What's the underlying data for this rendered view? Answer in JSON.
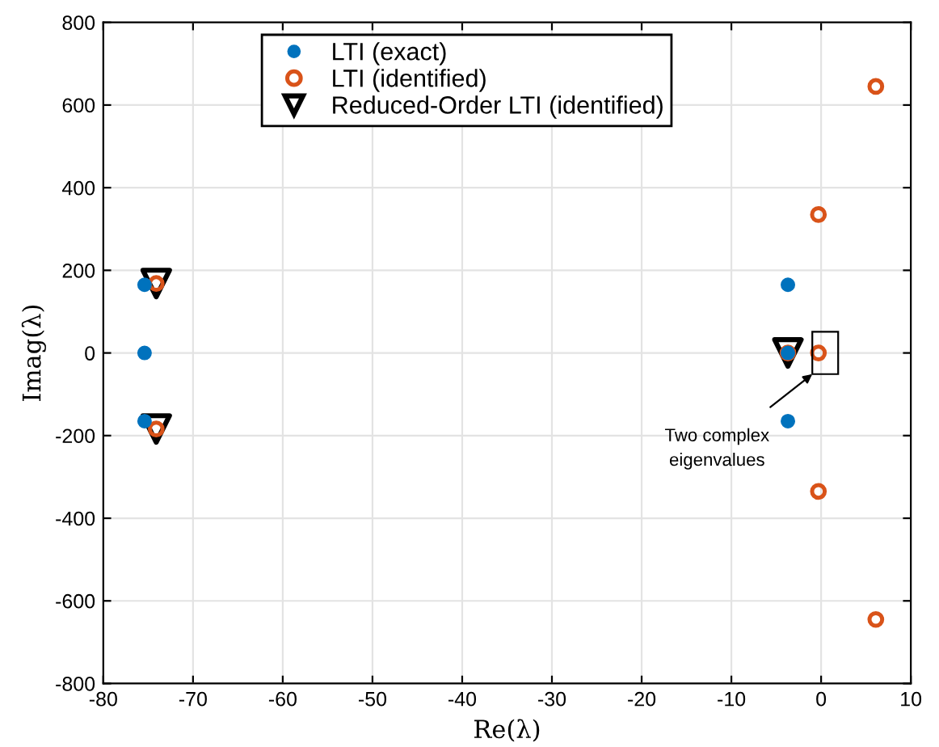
{
  "chart_data": {
    "type": "scatter",
    "xlabel": "Re(λ)",
    "ylabel": "Imag(λ)",
    "xlim": [
      -80,
      10
    ],
    "xticks": [
      -80,
      -70,
      -60,
      -50,
      -40,
      -30,
      -20,
      -10,
      0,
      10
    ],
    "ylim": [
      -800,
      800
    ],
    "yticks": [
      -800,
      -600,
      -400,
      -200,
      0,
      200,
      400,
      600,
      800
    ],
    "grid": true,
    "legend": "top",
    "series": [
      {
        "name": "LTI (exact)",
        "color": "#0072bd",
        "marker": "circle",
        "x": [
          -75.4,
          -75.4,
          -75.4,
          -3.7,
          -3.7,
          -3.7
        ],
        "values": [
          165,
          0,
          -165,
          165,
          0,
          -165
        ]
      },
      {
        "name": "LTI (identified)",
        "color": "#d95319",
        "marker": "circle",
        "x": [
          6.1,
          -0.3,
          -0.3,
          -0.3,
          6.1,
          -74.1,
          -74.1,
          -3.7
        ],
        "values": [
          645,
          335,
          0,
          -335,
          -645,
          168,
          -184,
          0
        ]
      },
      {
        "name": "Reduced-Order LTI (identified)",
        "color": "#000000",
        "marker": "triangle",
        "x": [
          -74.1,
          -74.1,
          -3.7
        ],
        "values": [
          168,
          -184,
          0
        ]
      }
    ],
    "annotations": [
      "Two complex\neigenvalues"
    ]
  }
}
